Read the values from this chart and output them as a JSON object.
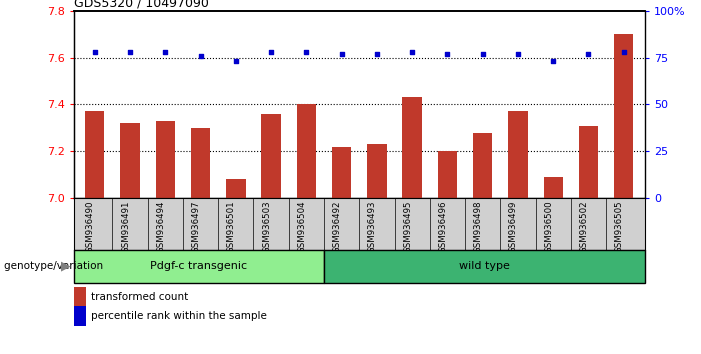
{
  "title": "GDS5320 / 10497090",
  "samples": [
    "GSM936490",
    "GSM936491",
    "GSM936494",
    "GSM936497",
    "GSM936501",
    "GSM936503",
    "GSM936504",
    "GSM936492",
    "GSM936493",
    "GSM936495",
    "GSM936496",
    "GSM936498",
    "GSM936499",
    "GSM936500",
    "GSM936502",
    "GSM936505"
  ],
  "red_values": [
    7.37,
    7.32,
    7.33,
    7.3,
    7.08,
    7.36,
    7.4,
    7.22,
    7.23,
    7.43,
    7.2,
    7.28,
    7.37,
    7.09,
    7.31,
    7.7
  ],
  "blue_values": [
    78,
    78,
    78,
    76,
    73,
    78,
    78,
    77,
    77,
    78,
    77,
    77,
    77,
    73,
    77,
    78
  ],
  "group1_label": "Pdgf-c transgenic",
  "group2_label": "wild type",
  "group1_count": 7,
  "group2_count": 9,
  "genotype_label": "genotype/variation",
  "ylim_left": [
    7.0,
    7.8
  ],
  "ylim_right": [
    0,
    100
  ],
  "yticks_left": [
    7.0,
    7.2,
    7.4,
    7.6,
    7.8
  ],
  "yticks_right": [
    0,
    25,
    50,
    75,
    100
  ],
  "ytick_labels_right": [
    "0",
    "25",
    "50",
    "75",
    "100%"
  ],
  "grid_values": [
    7.2,
    7.4,
    7.6
  ],
  "bar_color": "#c0392b",
  "dot_color": "#0000cc",
  "group1_bg": "#90ee90",
  "group2_bg": "#3cb371",
  "xticklabel_bg": "#d0d0d0",
  "legend_red_label": "transformed count",
  "legend_blue_label": "percentile rank within the sample",
  "fig_width": 7.01,
  "fig_height": 3.54
}
